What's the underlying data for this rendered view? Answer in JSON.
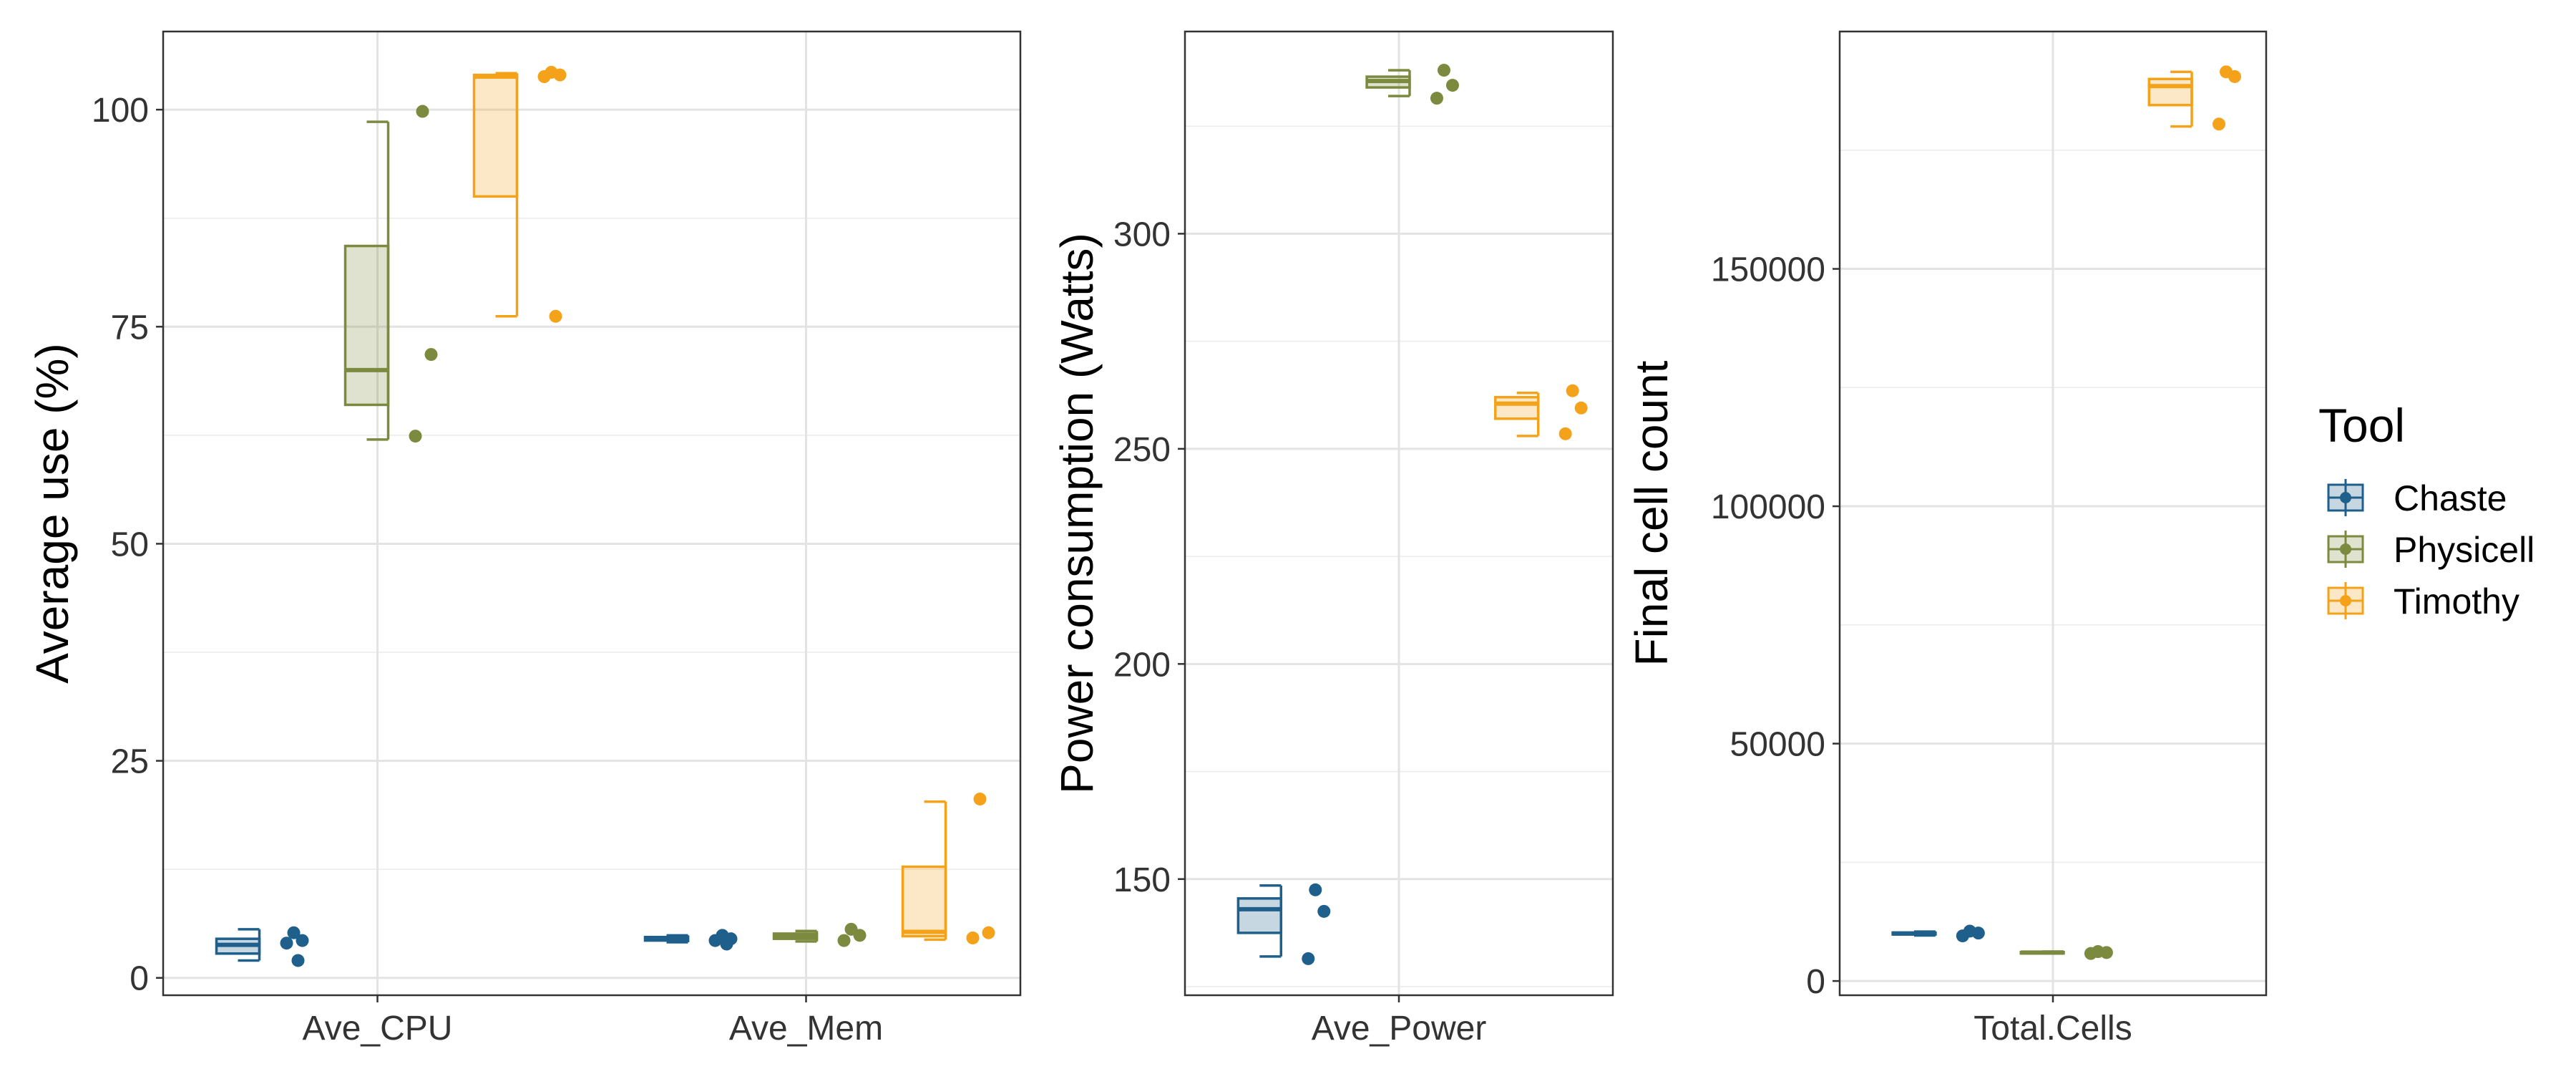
{
  "chart_data": {
    "type": "boxplot",
    "legend": {
      "title": "Tool",
      "position": "right",
      "entries": [
        {
          "name": "Chaste",
          "color": "#1f5f8b"
        },
        {
          "name": "Physicell",
          "color": "#7b8a3e"
        },
        {
          "name": "Timothy",
          "color": "#f5a21b"
        }
      ]
    },
    "panels": [
      {
        "id": "usage",
        "ylabel": "Average use (%)",
        "xlabel": "",
        "ylim": [
          -2,
          109
        ],
        "yticks": [
          0,
          25,
          50,
          75,
          100
        ],
        "ytick_labels": [
          "0",
          "25",
          "50",
          "75",
          "100"
        ],
        "categories": [
          "Ave_CPU",
          "Ave_Mem"
        ],
        "groups": [
          {
            "category": "Ave_CPU",
            "series": "Chaste",
            "whisker_low": 2.0,
            "q1": 2.8,
            "median": 3.8,
            "q3": 4.5,
            "whisker_high": 5.6,
            "points": [
              5.2,
              4.3,
              4.0,
              2.0
            ]
          },
          {
            "category": "Ave_CPU",
            "series": "Physicell",
            "whisker_low": 62.0,
            "q1": 66.0,
            "median": 70.0,
            "q3": 84.3,
            "whisker_high": 98.6,
            "points": [
              99.8,
              71.8,
              62.4
            ]
          },
          {
            "category": "Ave_CPU",
            "series": "Timothy",
            "whisker_low": 76.2,
            "q1": 90.0,
            "median": 103.8,
            "q3": 104.0,
            "whisker_high": 104.2,
            "points": [
              104.3,
              104.0,
              103.8,
              76.2
            ]
          },
          {
            "category": "Ave_Mem",
            "series": "Chaste",
            "whisker_low": 4.1,
            "q1": 4.3,
            "median": 4.5,
            "q3": 4.7,
            "whisker_high": 4.9,
            "points": [
              4.9,
              4.5,
              4.3,
              3.9
            ]
          },
          {
            "category": "Ave_Mem",
            "series": "Physicell",
            "whisker_low": 4.2,
            "q1": 4.5,
            "median": 4.8,
            "q3": 5.1,
            "whisker_high": 5.4,
            "points": [
              5.6,
              4.9,
              4.3
            ]
          },
          {
            "category": "Ave_Mem",
            "series": "Timothy",
            "whisker_low": 4.4,
            "q1": 4.8,
            "median": 5.3,
            "q3": 12.8,
            "whisker_high": 20.3,
            "points": [
              20.6,
              5.2,
              4.6
            ]
          }
        ]
      },
      {
        "id": "power",
        "ylabel": "Power consumption (Watts)",
        "xlabel": "",
        "ylim": [
          123,
          347
        ],
        "yticks": [
          150,
          200,
          250,
          300
        ],
        "ytick_labels": [
          "150",
          "200",
          "250",
          "300"
        ],
        "categories": [
          "Ave_Power"
        ],
        "groups": [
          {
            "category": "Ave_Power",
            "series": "Chaste",
            "whisker_low": 132,
            "q1": 137.5,
            "median": 143,
            "q3": 145.5,
            "whisker_high": 148.5,
            "points": [
              147.5,
              142.5,
              131.5
            ]
          },
          {
            "category": "Ave_Power",
            "series": "Physicell",
            "whisker_low": 332,
            "q1": 334,
            "median": 335.5,
            "q3": 336.5,
            "whisker_high": 338,
            "points": [
              338,
              334.5,
              331.5
            ]
          },
          {
            "category": "Ave_Power",
            "series": "Timothy",
            "whisker_low": 253,
            "q1": 257,
            "median": 260.5,
            "q3": 262,
            "whisker_high": 263,
            "points": [
              263.5,
              259.5,
              253.5
            ]
          }
        ]
      },
      {
        "id": "cells",
        "ylabel": "Final cell count",
        "xlabel": "",
        "ylim": [
          -3000,
          200000
        ],
        "yticks": [
          0,
          50000,
          100000,
          150000
        ],
        "ytick_labels": [
          "0",
          "50000",
          "100000",
          "150000"
        ],
        "categories": [
          "Total.Cells"
        ],
        "groups": [
          {
            "category": "Total.Cells",
            "series": "Chaste",
            "whisker_low": 9600,
            "q1": 9800,
            "median": 10000,
            "q3": 10200,
            "whisker_high": 10400,
            "points": [
              10500,
              10100,
              9500
            ]
          },
          {
            "category": "Total.Cells",
            "series": "Physicell",
            "whisker_low": 5800,
            "q1": 5900,
            "median": 6000,
            "q3": 6100,
            "whisker_high": 6200,
            "points": [
              6200,
              6000,
              5800
            ]
          },
          {
            "category": "Total.Cells",
            "series": "Timothy",
            "whisker_low": 180000,
            "q1": 184500,
            "median": 188500,
            "q3": 190000,
            "whisker_high": 191500,
            "points": [
              191500,
              190500,
              180500
            ]
          }
        ]
      }
    ]
  }
}
